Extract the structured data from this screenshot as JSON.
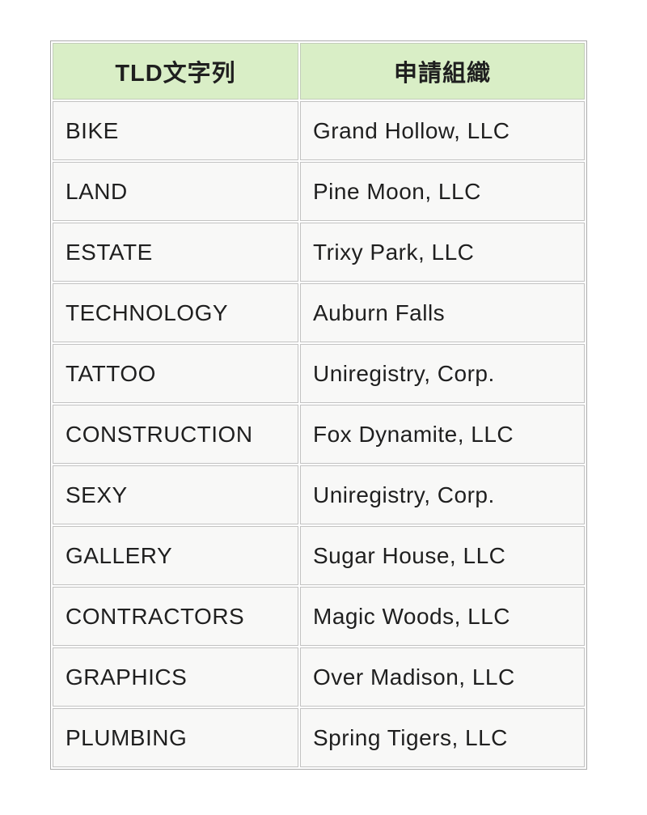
{
  "table": {
    "headers": {
      "tld": "TLD文字列",
      "org": "申請組織"
    },
    "rows": [
      {
        "tld": "BIKE",
        "org": "Grand Hollow, LLC"
      },
      {
        "tld": "LAND",
        "org": "Pine Moon, LLC"
      },
      {
        "tld": "ESTATE",
        "org": "Trixy Park, LLC"
      },
      {
        "tld": "TECHNOLOGY",
        "org": "Auburn Falls"
      },
      {
        "tld": "TATTOO",
        "org": "Uniregistry, Corp."
      },
      {
        "tld": "CONSTRUCTION",
        "org": "Fox Dynamite, LLC"
      },
      {
        "tld": "SEXY",
        "org": "Uniregistry, Corp."
      },
      {
        "tld": "GALLERY",
        "org": "Sugar House, LLC"
      },
      {
        "tld": "CONTRACTORS",
        "org": "Magic Woods, LLC"
      },
      {
        "tld": "GRAPHICS",
        "org": "Over Madison, LLC"
      },
      {
        "tld": "PLUMBING",
        "org": "Spring Tigers, LLC"
      }
    ]
  },
  "colors": {
    "header_bg": "#d9eec6",
    "cell_bg": "#f8f8f7",
    "border": "#ababab",
    "text": "#1f1f1f"
  }
}
